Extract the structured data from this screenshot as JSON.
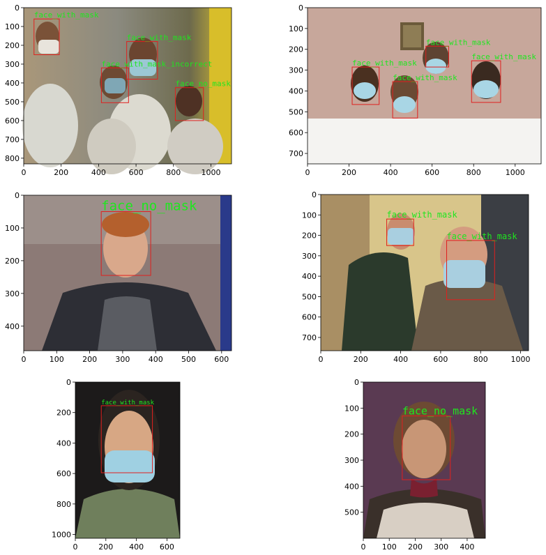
{
  "colors": {
    "box": "#e0201e",
    "label": "#1fe61f",
    "axis": "#000000"
  },
  "panels": [
    {
      "id": "p1",
      "scene": "schoolchildren",
      "x_ticks": [
        "0",
        "200",
        "400",
        "600",
        "800",
        "1000"
      ],
      "y_ticks": [
        "0",
        "100",
        "200",
        "300",
        "400",
        "500",
        "600",
        "700",
        "800"
      ],
      "x_range": [
        0,
        1110
      ],
      "y_range": [
        0,
        830
      ],
      "detections": [
        {
          "label": "face_with_mask",
          "box": [
            55,
            60,
            190,
            250
          ]
        },
        {
          "label": "face_with_mask",
          "box": [
            550,
            180,
            715,
            380
          ]
        },
        {
          "label": "face_with_mask_incorrect",
          "box": [
            415,
            320,
            560,
            505
          ]
        },
        {
          "label": "face_no_mask",
          "box": [
            810,
            425,
            960,
            600
          ]
        }
      ]
    },
    {
      "id": "p2",
      "scene": "group",
      "x_ticks": [
        "0",
        "200",
        "400",
        "600",
        "800",
        "1000"
      ],
      "y_ticks": [
        "0",
        "100",
        "200",
        "300",
        "400",
        "500",
        "600",
        "700"
      ],
      "x_range": [
        0,
        1125
      ],
      "y_range": [
        0,
        750
      ],
      "detections": [
        {
          "label": "face_with_mask",
          "box": [
            570,
            185,
            680,
            285
          ]
        },
        {
          "label": "face_with_mask",
          "box": [
            790,
            255,
            930,
            455
          ]
        },
        {
          "label": "face_with_mask",
          "box": [
            215,
            285,
            345,
            465
          ]
        },
        {
          "label": "face_with_mask",
          "box": [
            410,
            355,
            530,
            530
          ]
        }
      ]
    },
    {
      "id": "p3",
      "scene": "young-man",
      "x_ticks": [
        "0",
        "100",
        "200",
        "300",
        "400",
        "500",
        "600"
      ],
      "y_ticks": [
        "0",
        "100",
        "200",
        "300",
        "400"
      ],
      "x_range": [
        0,
        630
      ],
      "y_range": [
        0,
        475
      ],
      "detections": [
        {
          "label": "face_no_mask",
          "box": [
            235,
            50,
            385,
            245
          ]
        }
      ]
    },
    {
      "id": "p4",
      "scene": "selfie",
      "x_ticks": [
        "0",
        "200",
        "400",
        "600",
        "800",
        "1000"
      ],
      "y_ticks": [
        "0",
        "100",
        "200",
        "300",
        "400",
        "500",
        "600",
        "700"
      ],
      "x_range": [
        0,
        1040
      ],
      "y_range": [
        0,
        765
      ],
      "detections": [
        {
          "label": "face_with_mask",
          "box": [
            330,
            120,
            465,
            250
          ]
        },
        {
          "label": "face_with_mask",
          "box": [
            630,
            225,
            870,
            515
          ]
        }
      ]
    },
    {
      "id": "p5",
      "scene": "woman-mask",
      "x_ticks": [
        "0",
        "200",
        "400",
        "600"
      ],
      "y_ticks": [
        "0",
        "200",
        "400",
        "600",
        "800",
        "1000"
      ],
      "x_range": [
        0,
        685
      ],
      "y_range": [
        0,
        1025
      ],
      "detections": [
        {
          "label": "face_with_mask",
          "box": [
            170,
            155,
            505,
            595
          ]
        }
      ]
    },
    {
      "id": "p6",
      "scene": "older-woman",
      "x_ticks": [
        "0",
        "100",
        "200",
        "300",
        "400"
      ],
      "y_ticks": [
        "0",
        "100",
        "200",
        "300",
        "400",
        "500"
      ],
      "x_range": [
        0,
        470
      ],
      "y_range": [
        0,
        600
      ],
      "detections": [
        {
          "label": "face_no_mask",
          "box": [
            150,
            130,
            335,
            375
          ]
        }
      ]
    }
  ]
}
